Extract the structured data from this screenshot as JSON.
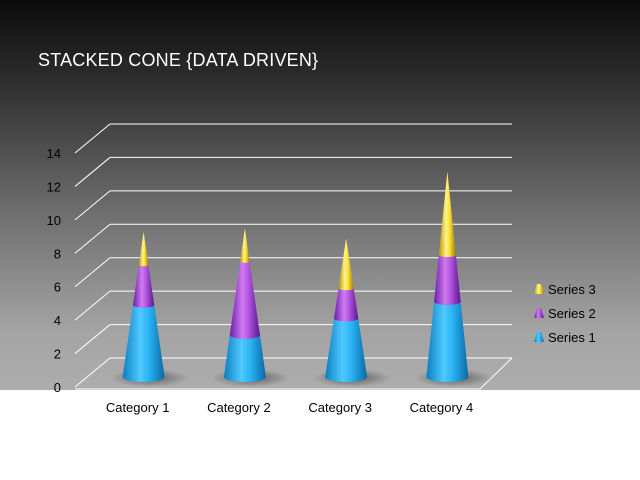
{
  "slide": {
    "title": "STACKED CONE {DATA DRIVEN}"
  },
  "chart_data": {
    "type": "bar",
    "subtype": "stacked-cone-3d",
    "title": "STACKED CONE {DATA DRIVEN}",
    "categories": [
      "Category 1",
      "Category 2",
      "Category 3",
      "Category 4"
    ],
    "series": [
      {
        "name": "Series 1",
        "values": [
          4.3,
          2.5,
          3.5,
          4.5
        ]
      },
      {
        "name": "Series 2",
        "values": [
          2.4,
          4.4,
          1.8,
          2.8
        ]
      },
      {
        "name": "Series 3",
        "values": [
          2.0,
          2.0,
          3.0,
          5.0
        ]
      }
    ],
    "ylim": [
      0,
      14
    ],
    "yticks": [
      0,
      2,
      4,
      6,
      8,
      10,
      12,
      14
    ],
    "grid": true,
    "legend": "right",
    "colors": {
      "Series 1": "#29b6f6",
      "Series 2": "#ab47d6",
      "Series 3": "#ffe030"
    }
  }
}
